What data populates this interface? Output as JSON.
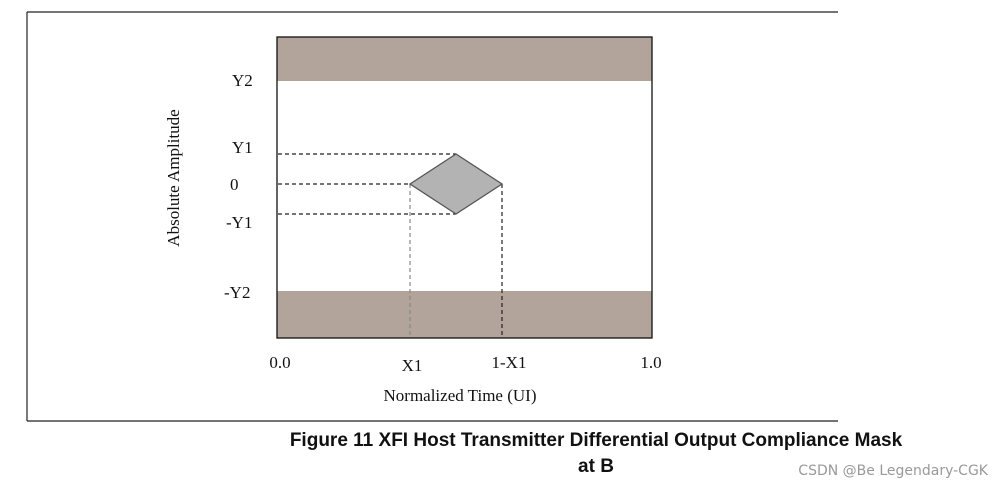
{
  "axes": {
    "y_label": "Absolute Amplitude",
    "x_label": "Normalized Time (UI)",
    "y_ticks": [
      "Y2",
      "Y1",
      "0",
      "-Y1",
      "-Y2"
    ],
    "x_ticks": [
      "0.0",
      "X1",
      "1-X1",
      "1.0"
    ]
  },
  "caption": {
    "line1": "Figure 11  XFI Host Transmitter Differential Output Compliance Mask",
    "line2": "at B"
  },
  "watermark": "CSDN @Be Legendary-CGK"
}
